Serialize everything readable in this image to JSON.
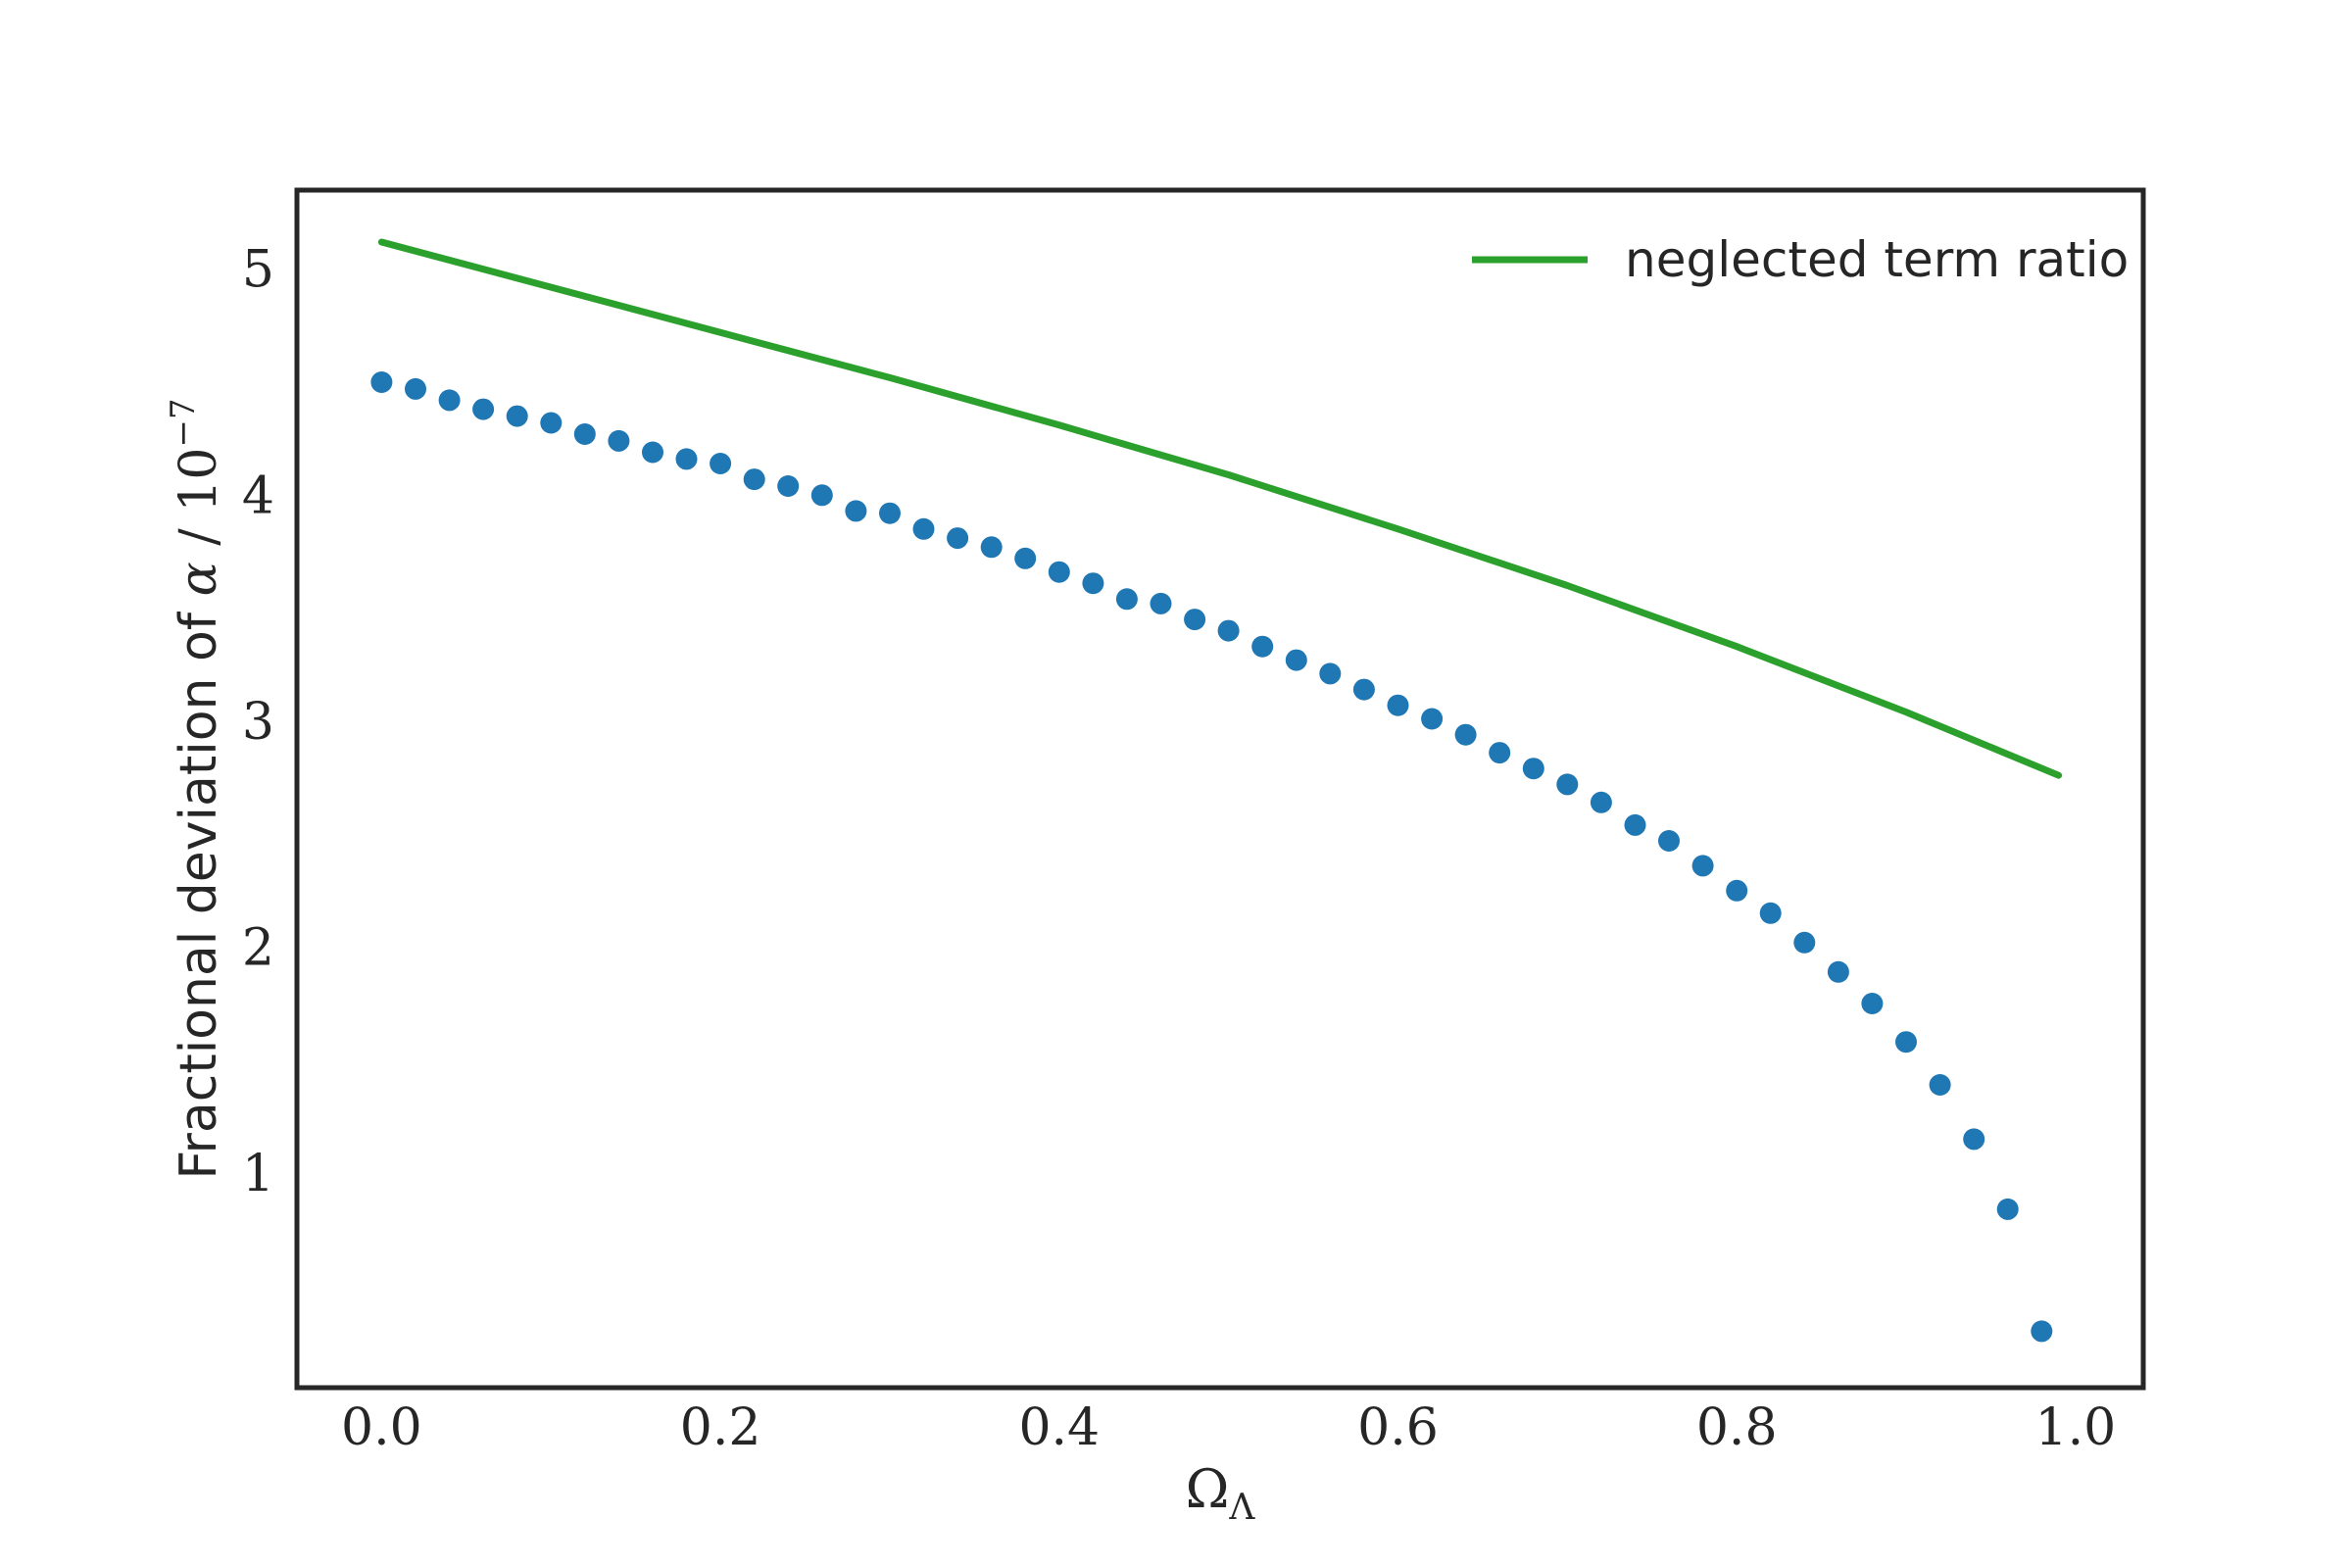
{
  "chart_data": {
    "type": "scatter",
    "xlabel": {
      "main": "Ω",
      "sub": "Λ"
    },
    "ylabel": {
      "prefix": "Fractional deviation of ",
      "symbol": "α",
      "middle": " / 10",
      "exponent": "−7"
    },
    "xlim": [
      -0.05,
      1.04
    ],
    "ylim": [
      0.05,
      5.35
    ],
    "xticks": [
      0.0,
      0.2,
      0.4,
      0.6,
      0.8,
      1.0
    ],
    "xtick_labels": [
      "0.0",
      "0.2",
      "0.4",
      "0.6",
      "0.8",
      "1.0"
    ],
    "yticks": [
      1,
      2,
      3,
      4,
      5
    ],
    "ytick_labels": [
      "1",
      "2",
      "3",
      "4",
      "5"
    ],
    "grid": false,
    "legend": {
      "placement": "top-right",
      "entries": [
        {
          "label": "neglected term ratio",
          "color": "#2ca02c"
        }
      ]
    },
    "series": [
      {
        "type": "line",
        "name": "neglected term ratio",
        "color": "#2ca02c",
        "x": [
          0.0,
          0.1,
          0.2,
          0.3,
          0.4,
          0.5,
          0.6,
          0.7,
          0.8,
          0.9,
          0.99
        ],
        "y": [
          5.12,
          4.92,
          4.72,
          4.52,
          4.31,
          4.09,
          3.85,
          3.6,
          3.33,
          3.04,
          2.76
        ]
      },
      {
        "type": "scatter",
        "color": "#1f77b4",
        "x": [
          0.0,
          0.02,
          0.04,
          0.06,
          0.08,
          0.1,
          0.12,
          0.14,
          0.16,
          0.18,
          0.2,
          0.22,
          0.24,
          0.26,
          0.28,
          0.3,
          0.32,
          0.34,
          0.36,
          0.38,
          0.4,
          0.42,
          0.44,
          0.46,
          0.48,
          0.5,
          0.52,
          0.54,
          0.56,
          0.58,
          0.6,
          0.62,
          0.64,
          0.66,
          0.68,
          0.7,
          0.72,
          0.74,
          0.76,
          0.78,
          0.8,
          0.82,
          0.84,
          0.86,
          0.88,
          0.9,
          0.92,
          0.94,
          0.96,
          0.98
        ],
        "y": [
          4.5,
          4.47,
          4.42,
          4.38,
          4.35,
          4.32,
          4.27,
          4.24,
          4.19,
          4.16,
          4.14,
          4.07,
          4.04,
          4.0,
          3.93,
          3.92,
          3.85,
          3.81,
          3.77,
          3.72,
          3.66,
          3.61,
          3.54,
          3.52,
          3.45,
          3.4,
          3.33,
          3.27,
          3.21,
          3.14,
          3.07,
          3.01,
          2.94,
          2.86,
          2.79,
          2.72,
          2.64,
          2.54,
          2.47,
          2.36,
          2.25,
          2.15,
          2.02,
          1.89,
          1.75,
          1.58,
          1.39,
          1.15,
          0.84,
          0.3
        ]
      }
    ]
  }
}
